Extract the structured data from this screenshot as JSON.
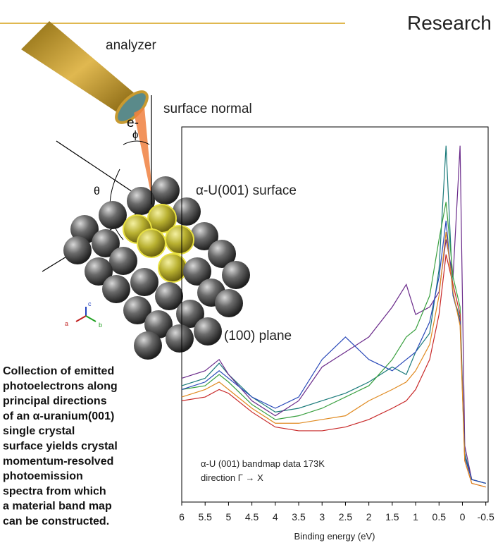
{
  "header": {
    "title": "Research"
  },
  "diagram": {
    "labels": {
      "analyzer": "analyzer",
      "electron": "e-",
      "normal": "surface normal",
      "phi": "ϕ",
      "theta": "θ",
      "surface": "α-U(001) surface",
      "plane": "(100) plane",
      "axis_c": "c",
      "axis_a": "a",
      "axis_b": "b"
    }
  },
  "caption": [
    "Collection of emitted",
    "photoelectrons along",
    "principal directions",
    "of an α-uranium(001)",
    "single crystal",
    "surface yields crystal",
    "momentum-resolved",
    "photoemission",
    "spectra from which",
    "a material band map",
    "can be constructed."
  ],
  "chart_data": {
    "type": "line",
    "x_label": "Binding energy (eV)",
    "annotations": [
      "α-U (001) bandmap data 173K",
      "direction Γ → X"
    ],
    "x": [
      6,
      5.5,
      5.2,
      5,
      4.5,
      4,
      3.5,
      3,
      2.5,
      2,
      1.5,
      1.2,
      1,
      0.7,
      0.5,
      0.35,
      0.2,
      0.05,
      -0.05,
      -0.2,
      -0.5
    ],
    "series": [
      {
        "color": "#1a7a7a",
        "values": [
          31,
          33,
          37,
          34,
          28,
          24,
          25,
          27,
          29,
          32,
          36,
          34,
          40,
          45,
          62,
          95,
          55,
          49,
          13,
          6,
          5
        ]
      },
      {
        "color": "#6a2a8a",
        "values": [
          33,
          35,
          38,
          34,
          27,
          23,
          27,
          36,
          40,
          44,
          52,
          58,
          50,
          52,
          56,
          70,
          60,
          95,
          15,
          6,
          5
        ]
      },
      {
        "color": "#3aa040",
        "values": [
          30,
          31,
          34,
          32,
          26,
          22,
          23,
          25,
          28,
          31,
          38,
          44,
          46,
          55,
          70,
          80,
          60,
          52,
          12,
          6,
          5
        ]
      },
      {
        "color": "#c82828",
        "values": [
          27,
          28,
          30,
          29,
          24,
          20,
          19,
          19,
          20,
          22,
          25,
          27,
          30,
          38,
          50,
          66,
          58,
          50,
          11,
          5,
          4
        ]
      },
      {
        "color": "#2848b8",
        "values": [
          30,
          32,
          35,
          33,
          28,
          25,
          28,
          38,
          44,
          38,
          35,
          38,
          40,
          48,
          60,
          75,
          55,
          48,
          12,
          6,
          5
        ]
      },
      {
        "color": "#e08a20",
        "values": [
          28,
          30,
          32,
          30,
          25,
          21,
          21,
          22,
          23,
          27,
          30,
          32,
          35,
          42,
          55,
          72,
          56,
          47,
          11,
          5,
          4
        ]
      }
    ],
    "xlim": [
      6.0,
      -0.55
    ],
    "xticks": [
      6,
      5.5,
      5,
      4.5,
      4,
      3.5,
      3,
      2.5,
      2,
      1.5,
      1,
      0.5,
      0,
      -0.5
    ],
    "ylim": [
      0,
      100
    ]
  }
}
